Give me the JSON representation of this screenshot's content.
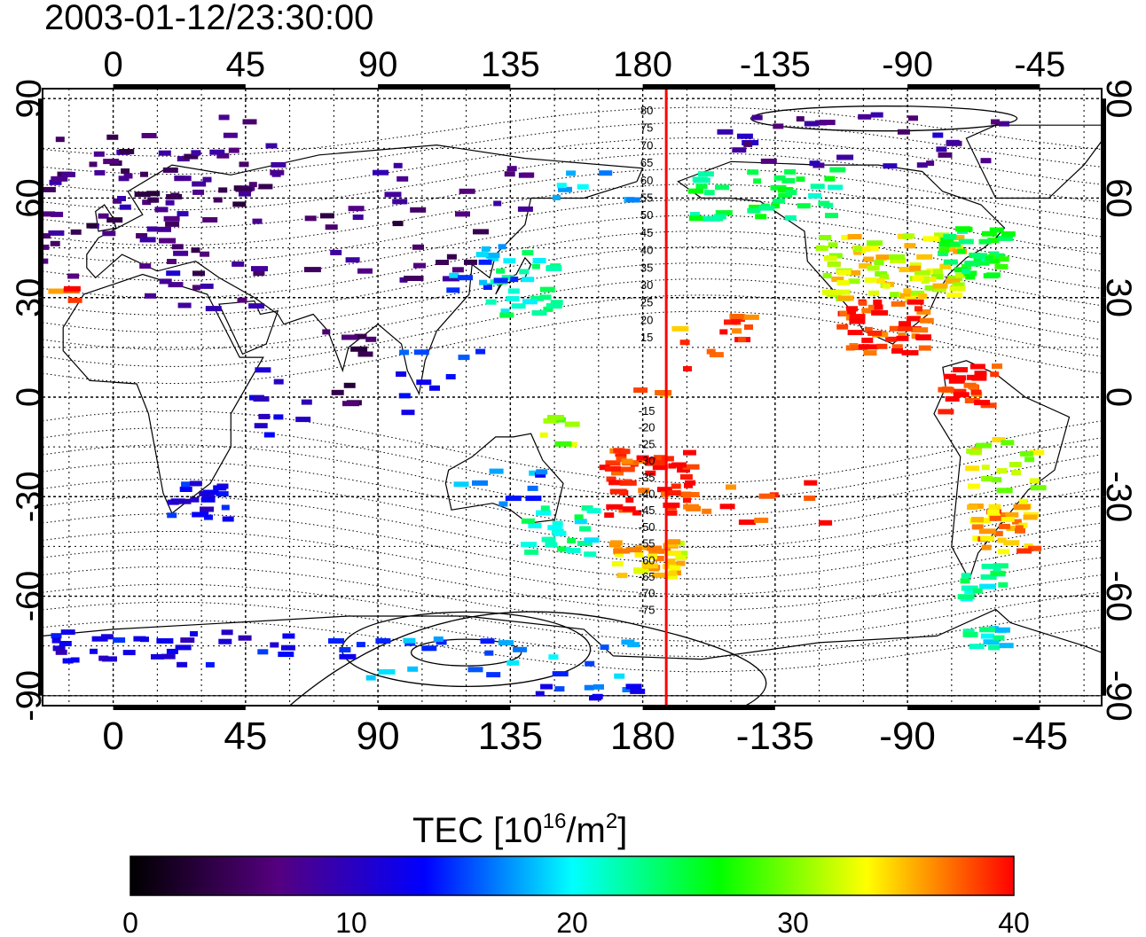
{
  "title": "2003-01-12/23:30:00",
  "axes": {
    "lon_ticks": [
      "0",
      "45",
      "90",
      "135",
      "180",
      "-135",
      "-90",
      "-45"
    ],
    "lat_ticks": [
      "90",
      "60",
      "30",
      "0",
      "-30",
      "-60",
      "-90"
    ],
    "lon_range": [
      -24,
      336
    ],
    "lat_range": [
      -93,
      93
    ]
  },
  "meridian_marker": {
    "lon": 188,
    "color": "#ff0000"
  },
  "contour_labels": {
    "north": [
      "80",
      "75",
      "70",
      "65",
      "60",
      "55",
      "50",
      "45",
      "40",
      "35",
      "30",
      "25",
      "20",
      "15"
    ],
    "south": [
      "-15",
      "-20",
      "-25",
      "-30",
      "-35",
      "-40",
      "-45",
      "-50",
      "-55",
      "-60",
      "-65",
      "-70",
      "-75"
    ]
  },
  "colorbar": {
    "label_main": "TEC  [10",
    "label_sup1": "16",
    "label_mid": "/m",
    "label_sup2": "2",
    "label_end": "]",
    "min": 0,
    "max": 40,
    "ticks": [
      "0",
      "10",
      "20",
      "30",
      "40"
    ],
    "stops": [
      "#000000",
      "#55007f",
      "#0000ff",
      "#00ffff",
      "#00ff00",
      "#ffff00",
      "#ff0000"
    ]
  },
  "tec_clusters": [
    {
      "lon": 0,
      "lat": 55,
      "w": 50,
      "h": 18,
      "n": 70,
      "v": 6
    },
    {
      "lon": 25,
      "lat": 65,
      "w": 30,
      "h": 10,
      "n": 25,
      "v": 7
    },
    {
      "lon": 30,
      "lat": 35,
      "w": 20,
      "h": 8,
      "n": 12,
      "v": 9
    },
    {
      "lon": -20,
      "lat": 33,
      "w": 5,
      "h": 4,
      "n": 5,
      "v": 38
    },
    {
      "lon": 20,
      "lat": 80,
      "w": 40,
      "h": 6,
      "n": 12,
      "v": 6
    },
    {
      "lon": 95,
      "lat": 48,
      "w": 35,
      "h": 12,
      "n": 25,
      "v": 6
    },
    {
      "lon": 110,
      "lat": 65,
      "w": 30,
      "h": 10,
      "n": 10,
      "v": 7
    },
    {
      "lon": 138,
      "lat": 35,
      "w": 12,
      "h": 10,
      "n": 30,
      "v": 22
    },
    {
      "lon": 125,
      "lat": 40,
      "w": 12,
      "h": 8,
      "n": 12,
      "v": 17
    },
    {
      "lon": 160,
      "lat": 62,
      "w": 15,
      "h": 8,
      "n": 8,
      "v": 18
    },
    {
      "lon": 220,
      "lat": 62,
      "w": 25,
      "h": 8,
      "n": 40,
      "v": 24
    },
    {
      "lon": 262,
      "lat": 40,
      "w": 25,
      "h": 10,
      "n": 90,
      "v": 33
    },
    {
      "lon": 290,
      "lat": 45,
      "w": 12,
      "h": 8,
      "n": 40,
      "v": 25
    },
    {
      "lon": 260,
      "lat": 22,
      "w": 15,
      "h": 8,
      "n": 50,
      "v": 39
    },
    {
      "lon": 210,
      "lat": 22,
      "w": 5,
      "h": 4,
      "n": 12,
      "v": 39
    },
    {
      "lon": 290,
      "lat": 3,
      "w": 10,
      "h": 8,
      "n": 25,
      "v": 39
    },
    {
      "lon": 300,
      "lat": -20,
      "w": 12,
      "h": 8,
      "n": 20,
      "v": 32
    },
    {
      "lon": 300,
      "lat": -38,
      "w": 12,
      "h": 8,
      "n": 40,
      "v": 36
    },
    {
      "lon": 295,
      "lat": -55,
      "w": 8,
      "h": 5,
      "n": 15,
      "v": 22
    },
    {
      "lon": 295,
      "lat": -72,
      "w": 8,
      "h": 3,
      "n": 12,
      "v": 21
    },
    {
      "lon": 180,
      "lat": -25,
      "w": 15,
      "h": 10,
      "n": 55,
      "v": 39
    },
    {
      "lon": 180,
      "lat": -48,
      "w": 12,
      "h": 6,
      "n": 40,
      "v": 34
    },
    {
      "lon": 150,
      "lat": -40,
      "w": 12,
      "h": 8,
      "n": 25,
      "v": 22
    },
    {
      "lon": 130,
      "lat": -27,
      "w": 15,
      "h": 6,
      "n": 10,
      "v": 16
    },
    {
      "lon": 150,
      "lat": -10,
      "w": 5,
      "h": 5,
      "n": 8,
      "v": 30
    },
    {
      "lon": 28,
      "lat": -30,
      "w": 10,
      "h": 6,
      "n": 20,
      "v": 12
    },
    {
      "lon": 20,
      "lat": -75,
      "w": 60,
      "h": 5,
      "n": 40,
      "v": 12
    },
    {
      "lon": 130,
      "lat": -78,
      "w": 50,
      "h": 6,
      "n": 25,
      "v": 17
    },
    {
      "lon": 160,
      "lat": -88,
      "w": 20,
      "h": 2,
      "n": 10,
      "v": 14
    },
    {
      "lon": 55,
      "lat": -2,
      "w": 10,
      "h": 12,
      "n": 10,
      "v": 12
    },
    {
      "lon": 80,
      "lat": 10,
      "w": 10,
      "h": 12,
      "n": 10,
      "v": 5
    },
    {
      "lon": 110,
      "lat": 5,
      "w": 15,
      "h": 12,
      "n": 10,
      "v": 13
    },
    {
      "lon": 255,
      "lat": 78,
      "w": 50,
      "h": 8,
      "n": 30,
      "v": 8
    },
    {
      "lon": 180,
      "lat": 10,
      "w": 25,
      "h": 12,
      "n": 8,
      "v": 37
    },
    {
      "lon": 220,
      "lat": -30,
      "w": 20,
      "h": 8,
      "n": 10,
      "v": 39
    }
  ]
}
